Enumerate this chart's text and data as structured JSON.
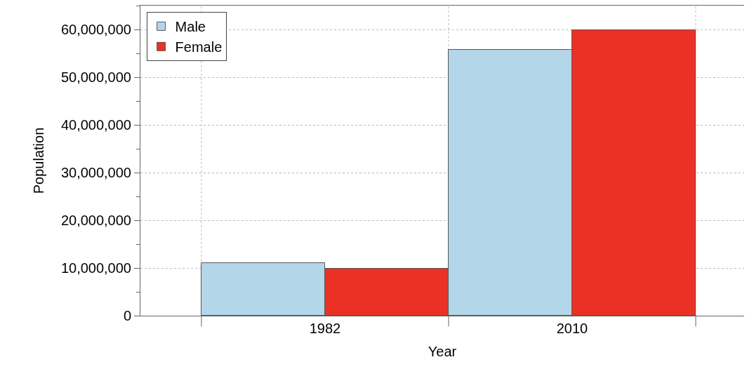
{
  "chart_data": {
    "type": "bar",
    "xlabel": "Year",
    "ylabel": "Population",
    "categories": [
      "1982",
      "2010"
    ],
    "series": [
      {
        "name": "Male",
        "color": "#b4d6e9",
        "values": [
          11100000,
          55800000
        ]
      },
      {
        "name": "Female",
        "color": "#eb3126",
        "values": [
          9900000,
          59900000
        ]
      }
    ],
    "ylim": [
      0,
      65000000
    ],
    "yticks": [
      {
        "value": 0,
        "label": "0"
      },
      {
        "value": 10000000,
        "label": "10,000,000"
      },
      {
        "value": 20000000,
        "label": "20,000,000"
      },
      {
        "value": 30000000,
        "label": "30,000,000"
      },
      {
        "value": 40000000,
        "label": "40,000,000"
      },
      {
        "value": 50000000,
        "label": "50,000,000"
      },
      {
        "value": 60000000,
        "label": "60,000,000"
      }
    ],
    "grid": true,
    "legend": "top left"
  }
}
